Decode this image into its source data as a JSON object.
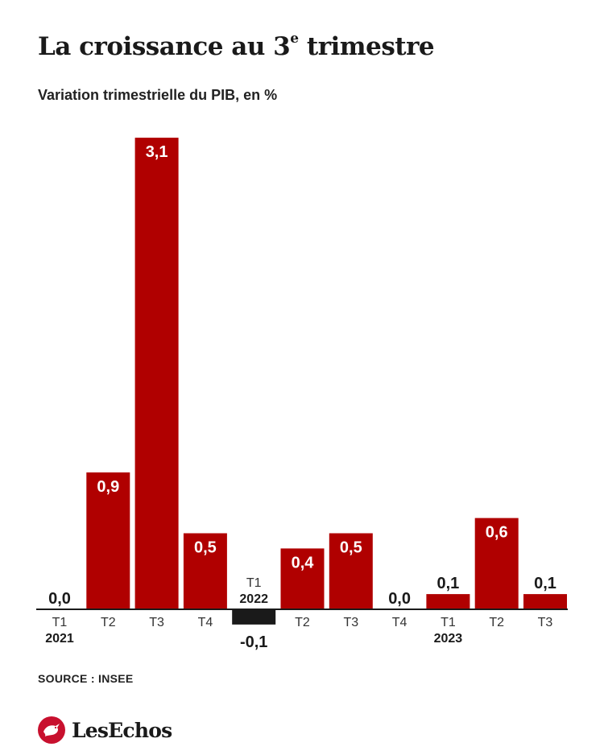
{
  "title": {
    "main": "La croissance au 3",
    "sup": "e",
    "rest": " trimestre"
  },
  "subtitle": "Variation trimestrielle du PIB, en %",
  "source": "SOURCE : INSEE",
  "logo": {
    "text": "LesEchos",
    "icon": "les-echos-bird-logo-icon"
  },
  "colors": {
    "positive": "#b00000",
    "negative": "#1a1a1a",
    "axis": "#1a1a1a",
    "label_inside": "#ffffff"
  },
  "chart_data": {
    "type": "bar",
    "title": "La croissance au 3e trimestre",
    "subtitle": "Variation trimestrielle du PIB, en %",
    "ylabel": "",
    "xlabel": "",
    "ylim": [
      -0.1,
      3.1
    ],
    "grid": false,
    "legend": "none",
    "categories": [
      "T1",
      "T2",
      "T3",
      "T4",
      "T1",
      "T2",
      "T3",
      "T4",
      "T1",
      "T2",
      "T3"
    ],
    "years": [
      "2021",
      "",
      "",
      "",
      "2022",
      "",
      "",
      "",
      "2023",
      "",
      ""
    ],
    "values": [
      0.0,
      0.9,
      3.1,
      0.5,
      -0.1,
      0.4,
      0.5,
      0.0,
      0.1,
      0.6,
      0.1
    ],
    "value_labels": [
      "0,0",
      "0,9",
      "3,1",
      "0,5",
      "-0,1",
      "0,4",
      "0,5",
      "0,0",
      "0,1",
      "0,6",
      "0,1"
    ]
  }
}
